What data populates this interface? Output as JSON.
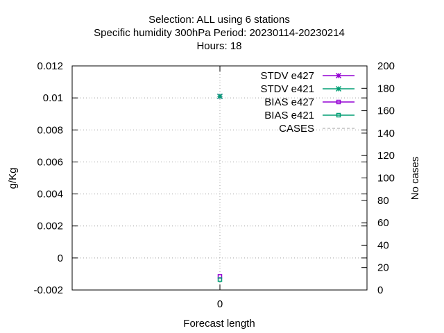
{
  "chart_data": {
    "type": "scatter",
    "title_lines": [
      "Selection: ALL using      6 stations",
      "Specific humidity 300hPa   Period: 20230114-20230214",
      "Hours:  18"
    ],
    "xlabel": "Forecast length",
    "ylabel": "g/Kg",
    "y2label": "No cases",
    "x_ticks": [
      "0"
    ],
    "ylim": [
      -0.002,
      0.012
    ],
    "y_ticks": [
      "-0.002",
      "0",
      "0.002",
      "0.004",
      "0.006",
      "0.008",
      "0.01",
      "0.012"
    ],
    "y2lim": [
      0,
      200
    ],
    "y2_ticks": [
      "0",
      "20",
      "40",
      "60",
      "80",
      "100",
      "120",
      "140",
      "160",
      "180",
      "200"
    ],
    "grid": true,
    "legend_position": "top-right",
    "series": [
      {
        "name": "STDV e427",
        "axis": "y",
        "marker": "star",
        "color": "#9400d3",
        "x": [
          0
        ],
        "y": [
          0.0101
        ]
      },
      {
        "name": "STDV e421",
        "axis": "y",
        "marker": "star",
        "color": "#009e73",
        "x": [
          0
        ],
        "y": [
          0.0101
        ]
      },
      {
        "name": "BIAS e427",
        "axis": "y",
        "marker": "square",
        "color": "#9400d3",
        "x": [
          0
        ],
        "y": [
          -0.00115
        ]
      },
      {
        "name": "BIAS e421",
        "axis": "y",
        "marker": "square",
        "color": "#009e73",
        "x": [
          0
        ],
        "y": [
          -0.00135
        ]
      },
      {
        "name": "CASES",
        "axis": "y2",
        "marker": "none",
        "dashed": true,
        "color": "#a0a0a0",
        "x": [],
        "y": []
      }
    ]
  }
}
